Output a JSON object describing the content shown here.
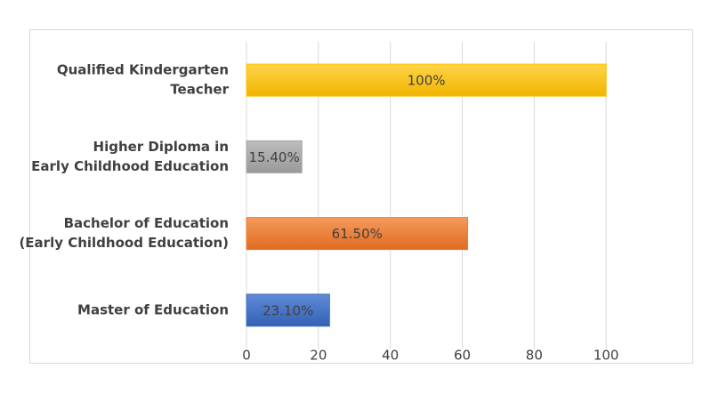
{
  "chart_data": {
    "type": "bar",
    "orientation": "horizontal",
    "categories": [
      [
        "Qualified Kindergarten",
        "Teacher"
      ],
      [
        "Higher Diploma in",
        "Early Childhood Education"
      ],
      [
        "Bachelor of Education",
        "(Early Childhood Education)"
      ],
      [
        "Master of Education"
      ]
    ],
    "values": [
      100,
      15.4,
      61.5,
      23.1
    ],
    "value_labels": [
      "100%",
      "15.40%",
      "61.50%",
      "23.10%"
    ],
    "colors": [
      "#ffc000",
      "#a5a5a5",
      "#ed7d31",
      "#4472c4"
    ],
    "xlim": [
      0,
      120
    ],
    "xticks": [
      0,
      20,
      40,
      60,
      80,
      100
    ],
    "grid": true
  }
}
